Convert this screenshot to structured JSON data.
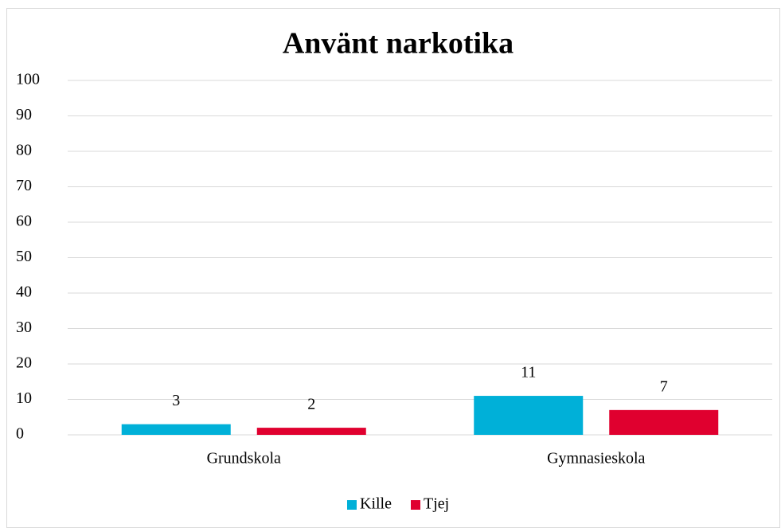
{
  "chart_data": {
    "type": "bar",
    "title": "Använt narkotika",
    "categories": [
      "Grundskola",
      "Gymnasieskola"
    ],
    "series": [
      {
        "name": "Kille",
        "color": "#00b0d8",
        "values": [
          3,
          11
        ]
      },
      {
        "name": "Tjej",
        "color": "#e0002f",
        "values": [
          2,
          7
        ]
      }
    ],
    "ylim": [
      0,
      100
    ],
    "yticks": [
      0,
      10,
      20,
      30,
      40,
      50,
      60,
      70,
      80,
      90,
      100
    ],
    "grid": true,
    "legend": "bottom"
  }
}
